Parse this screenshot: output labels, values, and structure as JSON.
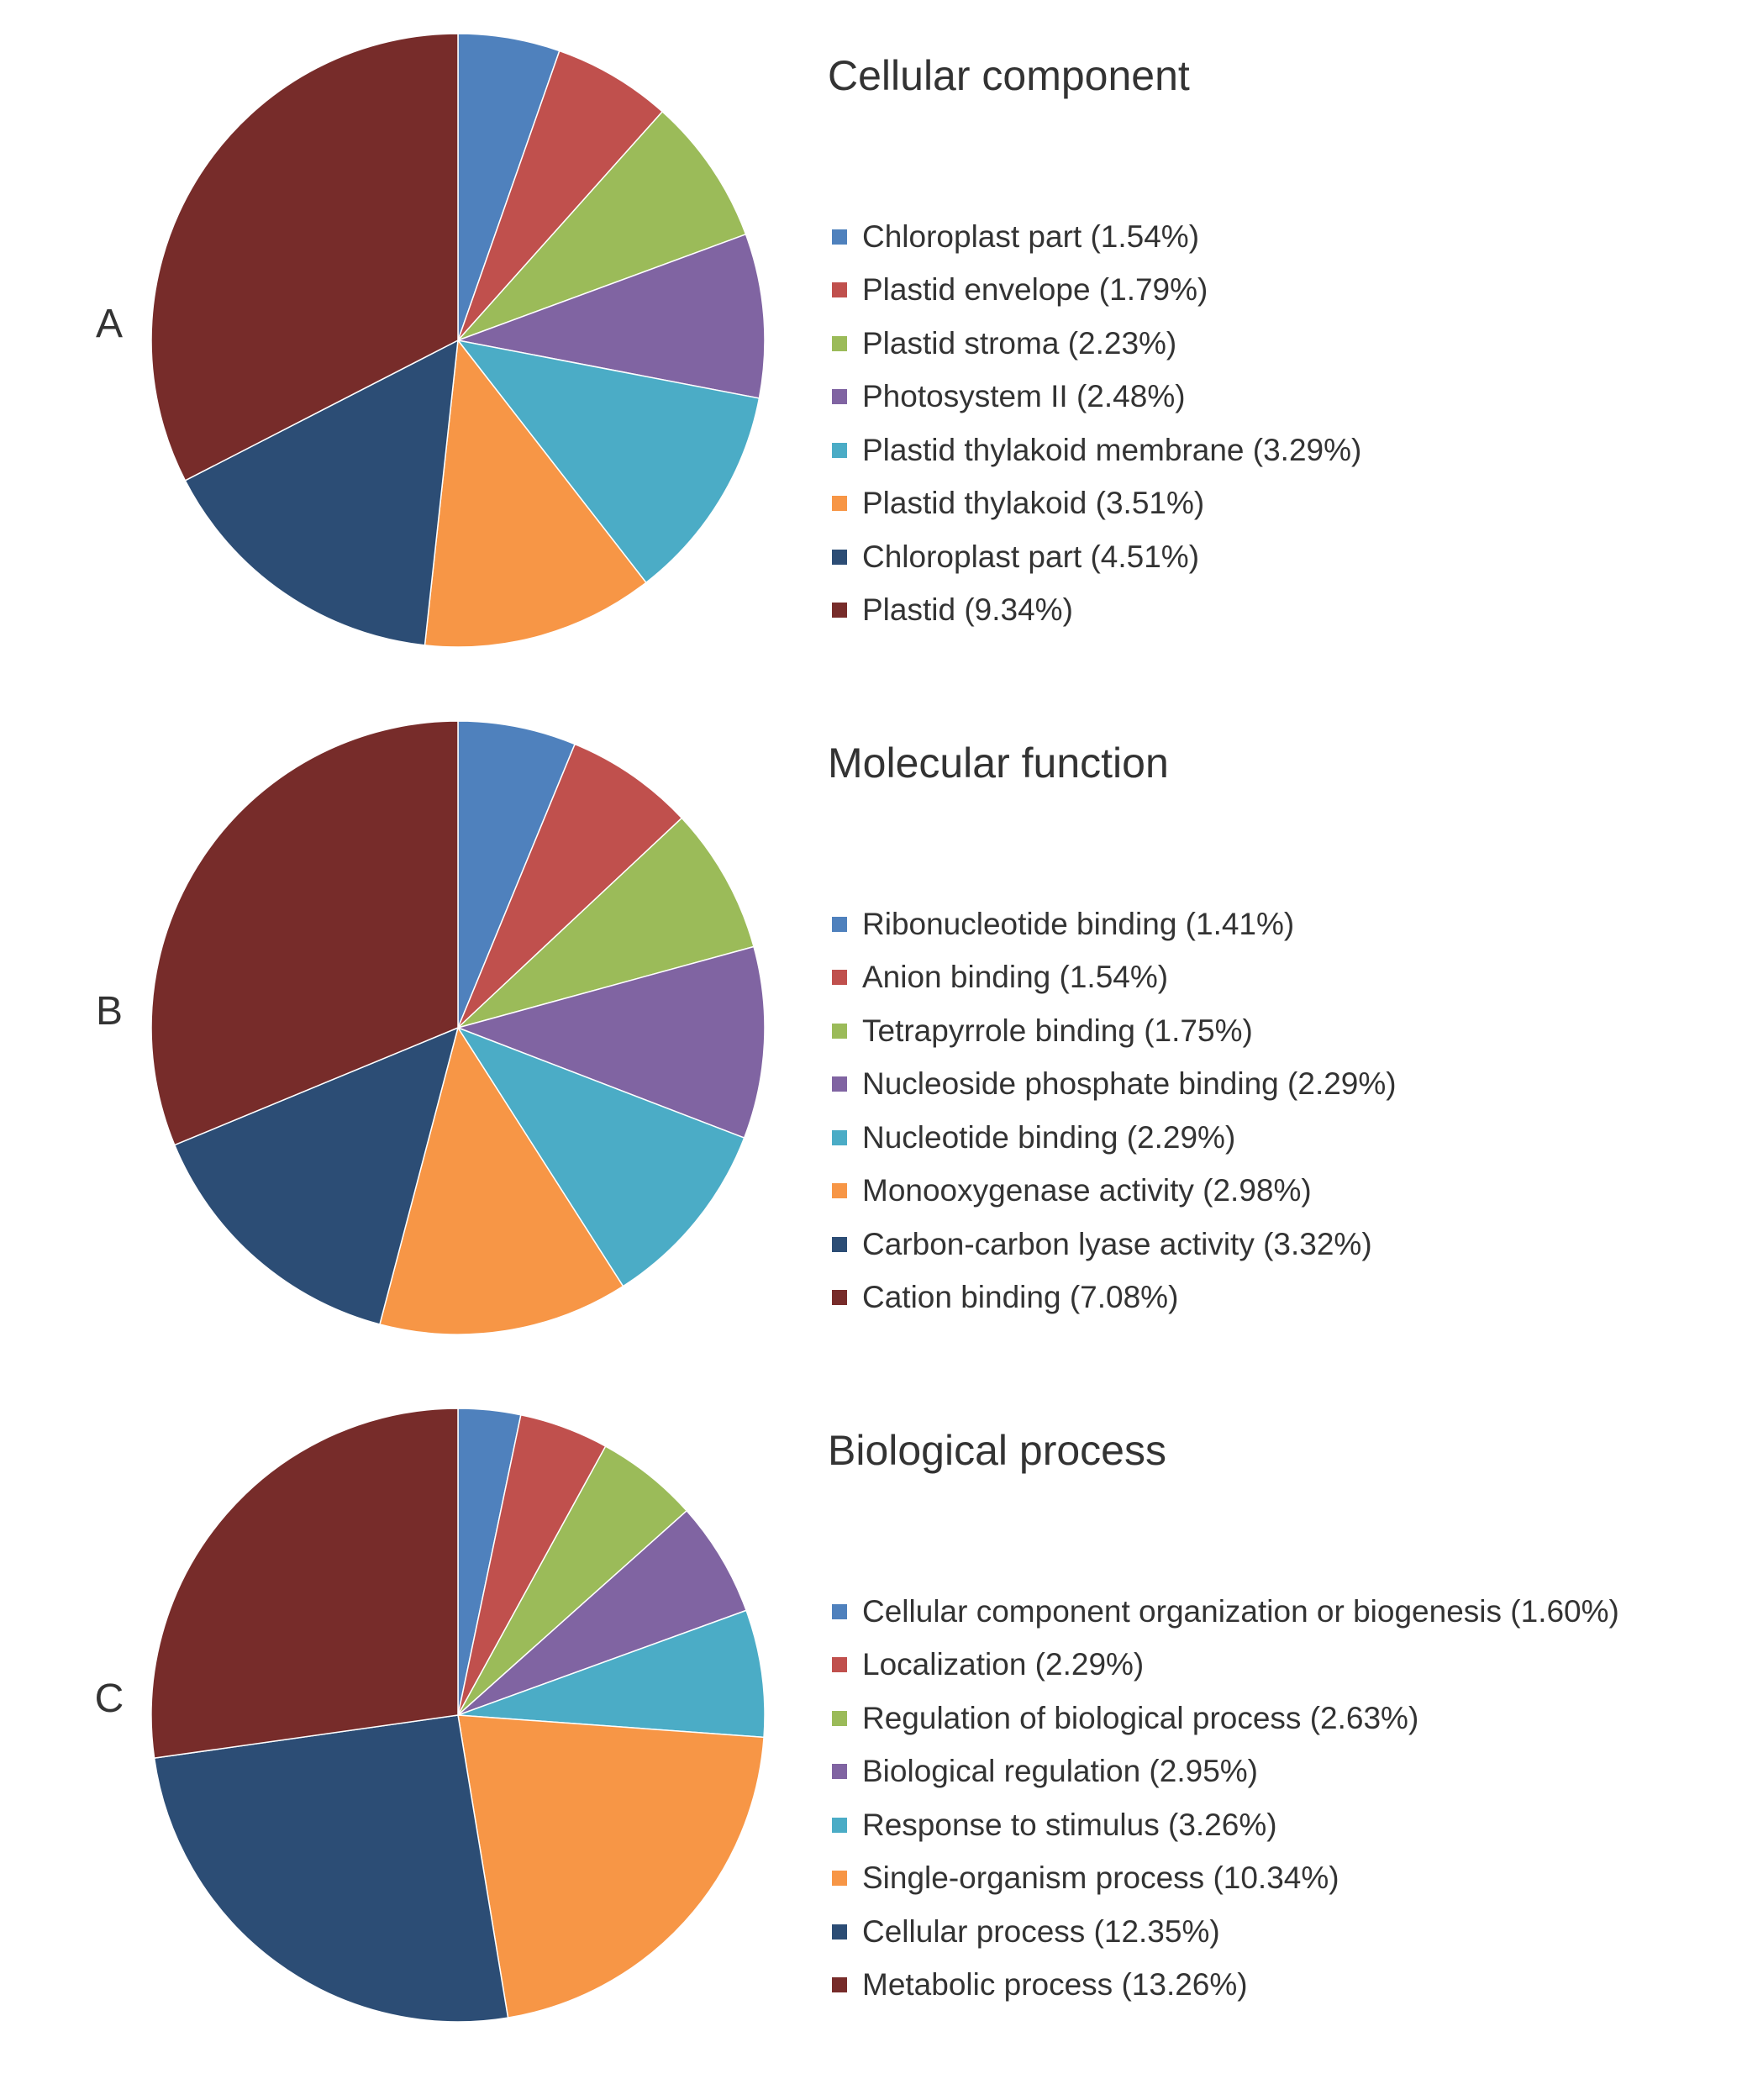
{
  "colors": [
    "#4f81bd",
    "#c0504d",
    "#9bbb59",
    "#8064a2",
    "#4bacc6",
    "#f79646",
    "#2c4d75",
    "#772c2a"
  ],
  "chart_data": [
    {
      "type": "pie",
      "panel": "A",
      "title": "Cellular component",
      "legend_position": "right",
      "start": "top, clockwise",
      "labels": [
        "Chloroplast part (1.54%)",
        "Plastid envelope (1.79%)",
        "Plastid stroma (2.23%)",
        "Photosystem II (2.48%)",
        "Plastid thylakoid membrane (3.29%)",
        "Plastid thylakoid (3.51%)",
        "Chloroplast part (4.51%)",
        "Plastid (9.34%)"
      ],
      "values": [
        1.54,
        1.79,
        2.23,
        2.48,
        3.29,
        3.51,
        4.51,
        9.34
      ]
    },
    {
      "type": "pie",
      "panel": "B",
      "title": "Molecular function",
      "legend_position": "right",
      "start": "top, clockwise",
      "labels": [
        "Ribonucleotide binding (1.41%)",
        "Anion binding (1.54%)",
        "Tetrapyrrole binding (1.75%)",
        "Nucleoside phosphate binding (2.29%)",
        "Nucleotide binding (2.29%)",
        "Monooxygenase activity (2.98%)",
        "Carbon-carbon lyase activity (3.32%)",
        "Cation binding (7.08%)"
      ],
      "values": [
        1.41,
        1.54,
        1.75,
        2.29,
        2.29,
        2.98,
        3.32,
        7.08
      ]
    },
    {
      "type": "pie",
      "panel": "C",
      "title": "Biological process",
      "legend_position": "right",
      "start": "top, clockwise",
      "labels": [
        "Cellular component organization or biogenesis (1.60%)",
        "Localization (2.29%)",
        "Regulation of biological process (2.63%)",
        "Biological regulation (2.95%)",
        "Response to stimulus (3.26%)",
        "Single-organism process (10.34%)",
        "Cellular process (12.35%)",
        "Metabolic process (13.26%)"
      ],
      "values": [
        1.6,
        2.29,
        2.63,
        2.95,
        3.26,
        10.34,
        12.35,
        13.26
      ]
    }
  ]
}
